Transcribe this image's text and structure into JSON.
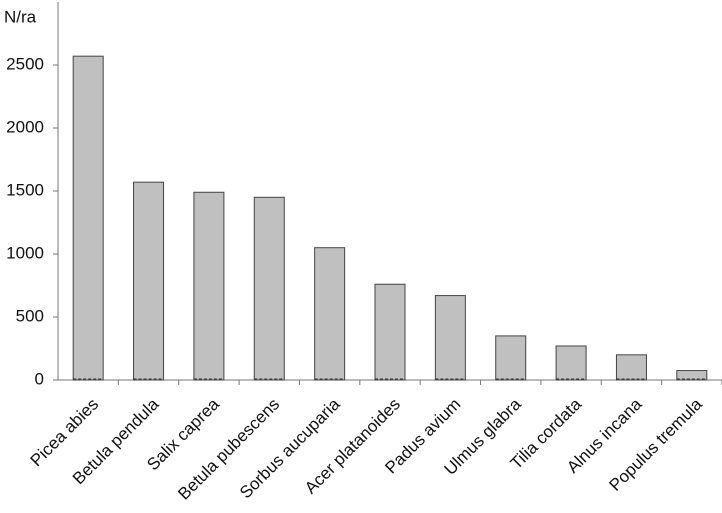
{
  "chart_data": {
    "type": "bar",
    "y_label": "N/ra",
    "categories": [
      "Picea abies",
      "Betula pendula",
      "Salix caprea",
      "Betula pubescens",
      "Sorbus aucuparia",
      "Acer platanoides",
      "Padus avium",
      "Ulmus glabra",
      "Tilia cordata",
      "Alnus incana",
      "Populus tremula"
    ],
    "values": [
      2570,
      1570,
      1490,
      1450,
      1050,
      760,
      670,
      350,
      270,
      200,
      75
    ],
    "color": "#c0c0c0",
    "ylim": [
      0,
      3000
    ],
    "yticks": [
      0,
      500,
      1000,
      1500,
      2000,
      2500
    ],
    "grid": false
  }
}
